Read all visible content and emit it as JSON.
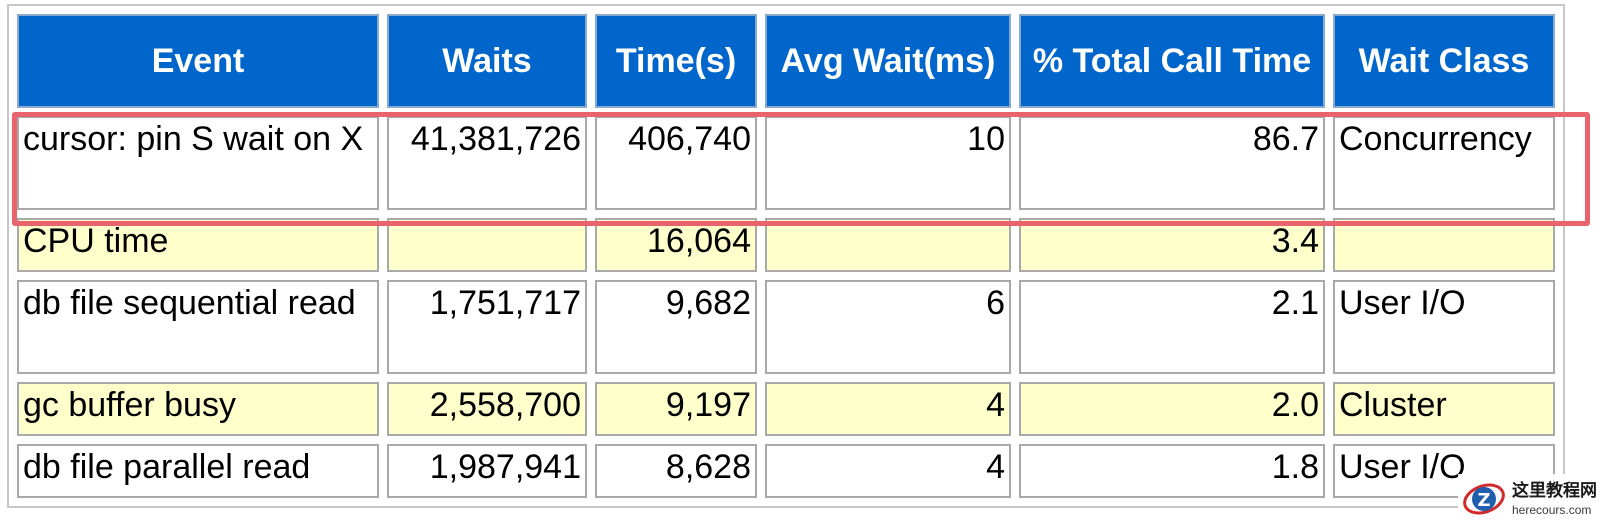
{
  "table": {
    "columns": [
      "Event",
      "Waits",
      "Time(s)",
      "Avg Wait(ms)",
      "% Total Call Time",
      "Wait Class"
    ],
    "rows": [
      {
        "event": "cursor: pin S wait on X",
        "waits": "41,381,726",
        "time_s": "406,740",
        "avg_wait_ms": "10",
        "pct_total_call_time": "86.7",
        "wait_class": "Concurrency"
      },
      {
        "event": "CPU time",
        "waits": "",
        "time_s": "16,064",
        "avg_wait_ms": "",
        "pct_total_call_time": "3.4",
        "wait_class": ""
      },
      {
        "event": "db file sequential read",
        "waits": "1,751,717",
        "time_s": "9,682",
        "avg_wait_ms": "6",
        "pct_total_call_time": "2.1",
        "wait_class": "User I/O"
      },
      {
        "event": "gc buffer busy",
        "waits": "2,558,700",
        "time_s": "9,197",
        "avg_wait_ms": "4",
        "pct_total_call_time": "2.0",
        "wait_class": "Cluster"
      },
      {
        "event": "db file parallel read",
        "waits": "1,987,941",
        "time_s": "8,628",
        "avg_wait_ms": "4",
        "pct_total_call_time": "1.8",
        "wait_class": "User I/O"
      }
    ]
  },
  "colors": {
    "header_bg": "#0066cc",
    "row_alt_bg": "#ffffcc",
    "highlight_border": "#e8636b"
  },
  "watermark": {
    "icon": "watermark-logo-icon",
    "title": "这里教程网",
    "url": "herecours.com"
  }
}
